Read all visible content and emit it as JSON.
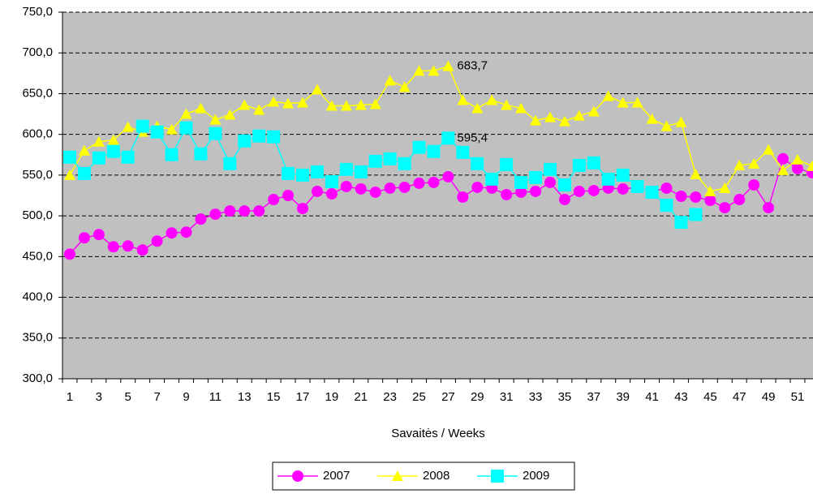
{
  "chart_data": {
    "type": "line",
    "xlabel": "Savaitės / Weeks",
    "categories": [
      "1",
      null,
      "3",
      null,
      "5",
      null,
      "7",
      null,
      "9",
      null,
      "11",
      null,
      "13",
      null,
      "15",
      null,
      "17",
      null,
      "19",
      null,
      "21",
      null,
      "23",
      null,
      "25",
      null,
      "27",
      null,
      "29",
      null,
      "31",
      null,
      "33",
      null,
      "35",
      null,
      "37",
      null,
      "39",
      null,
      "41",
      null,
      "43",
      null,
      "45",
      null,
      "47",
      null,
      "49",
      null,
      "51",
      null
    ],
    "ylim": [
      300,
      750
    ],
    "yticks": [
      {
        "value": 300,
        "label": "300,0"
      },
      {
        "value": 350,
        "label": "350,0"
      },
      {
        "value": 400,
        "label": "400,0"
      },
      {
        "value": 450,
        "label": "450,0"
      },
      {
        "value": 500,
        "label": "500,0"
      },
      {
        "value": 550,
        "label": "550,0"
      },
      {
        "value": 600,
        "label": "600,0"
      },
      {
        "value": 650,
        "label": "650,0"
      },
      {
        "value": 700,
        "label": "700,0"
      },
      {
        "value": 750,
        "label": "750,0"
      }
    ],
    "grid": true,
    "legend": "bottom",
    "series": [
      {
        "name": "2007",
        "color": "#ff00ff",
        "marker": "circle",
        "values": [
          453,
          473,
          477,
          462,
          463,
          458,
          469,
          479,
          480,
          496,
          502,
          506,
          506,
          506,
          520,
          525,
          509,
          530,
          527,
          536,
          533,
          529,
          534,
          535,
          540,
          541,
          548,
          523,
          535,
          534,
          526,
          529,
          530,
          541,
          520,
          530,
          531,
          534,
          533,
          535,
          530,
          534,
          524,
          523,
          519,
          510,
          520,
          538,
          510,
          570,
          558,
          553
        ]
      },
      {
        "name": "2008",
        "color": "#ffff00",
        "marker": "triangle",
        "values": [
          550,
          580,
          591,
          593,
          609,
          603,
          610,
          606,
          625,
          632,
          618,
          624,
          636,
          630,
          640,
          638,
          639,
          655,
          635,
          635,
          636,
          637,
          666,
          658,
          678,
          678,
          683.7,
          642,
          632,
          642,
          636,
          632,
          617,
          621,
          616,
          623,
          628,
          647,
          639,
          639,
          619,
          610,
          615,
          551,
          530,
          534,
          562,
          564,
          581,
          556,
          569,
          561
        ],
        "value_labels": [
          null,
          null,
          null,
          null,
          null,
          null,
          null,
          null,
          null,
          null,
          null,
          null,
          null,
          null,
          null,
          null,
          null,
          null,
          null,
          null,
          null,
          null,
          null,
          null,
          null,
          null,
          "683,7",
          null,
          null,
          null,
          null,
          null,
          null,
          null,
          null,
          null,
          null,
          null,
          null,
          null,
          null,
          null,
          null,
          null,
          null,
          null,
          null,
          null,
          null,
          null,
          null,
          null
        ]
      },
      {
        "name": "2009",
        "color": "#00ffff",
        "marker": "square",
        "values": [
          572,
          552,
          571,
          579,
          572,
          610,
          603,
          575,
          608,
          576,
          601,
          564,
          592,
          598,
          597,
          552,
          550,
          554,
          542,
          557,
          554,
          567,
          570,
          564,
          584,
          579,
          595.4,
          578,
          564,
          545,
          563,
          541,
          547,
          557,
          538,
          562,
          565,
          545,
          550,
          536,
          529,
          513,
          492,
          501.6,
          null,
          null,
          null,
          null,
          null,
          null,
          null,
          null
        ],
        "value_labels": [
          null,
          null,
          null,
          null,
          null,
          null,
          null,
          null,
          null,
          null,
          null,
          null,
          null,
          null,
          null,
          null,
          null,
          null,
          null,
          null,
          null,
          null,
          null,
          null,
          null,
          null,
          "595,4",
          null,
          null,
          null,
          null,
          null,
          null,
          null,
          null,
          null,
          null,
          null,
          null,
          null,
          null,
          null,
          null,
          null,
          null,
          null,
          null,
          null,
          null,
          null,
          null,
          null
        ]
      }
    ]
  }
}
